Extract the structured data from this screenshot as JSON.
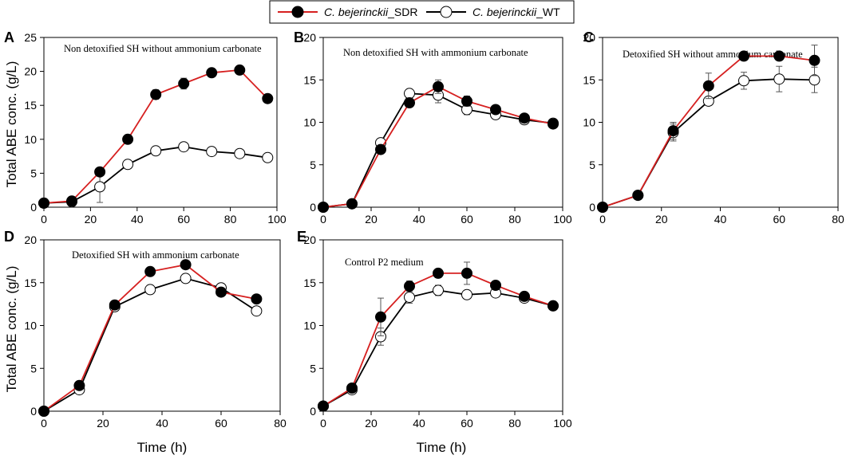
{
  "colors": {
    "sdr_line": "#d62020",
    "wt_line": "#000000",
    "marker_edge": "#000000",
    "sdr_fill": "#000000",
    "wt_fill": "#ffffff"
  },
  "legend": {
    "items": [
      {
        "series": "sdr",
        "italic": "C. bejerinckii",
        "suffix": "_SDR"
      },
      {
        "series": "wt",
        "italic": "C. bejerinckii",
        "suffix": "_WT"
      }
    ]
  },
  "y_axis_title": "Total ABE conc. (g/L)",
  "x_axis_title": "Time (h)",
  "chart_data": [
    {
      "type": "line",
      "letter": "A",
      "title": "Non detoxified SH without ammonium carbonate",
      "xlim": [
        0,
        100
      ],
      "ylim": [
        0,
        25
      ],
      "xticks": [
        0,
        20,
        40,
        60,
        80,
        100
      ],
      "yticks": [
        0,
        5,
        10,
        15,
        20,
        25
      ],
      "series": [
        {
          "name": "C. bejerinckii_SDR",
          "key": "sdr",
          "x": [
            0,
            12,
            24,
            36,
            48,
            60,
            72,
            84,
            96
          ],
          "y": [
            0.6,
            0.9,
            5.2,
            10.0,
            16.6,
            18.2,
            19.8,
            20.2,
            16.0
          ],
          "err": [
            0,
            0,
            0,
            0,
            0.7,
            0.8,
            0.3,
            0.3,
            0
          ]
        },
        {
          "name": "C. bejerinckii_WT",
          "key": "wt",
          "x": [
            0,
            12,
            24,
            36,
            48,
            60,
            72,
            84,
            96
          ],
          "y": [
            0.6,
            0.8,
            3.0,
            6.3,
            8.3,
            8.9,
            8.2,
            7.9,
            7.3
          ],
          "err": [
            0,
            0,
            2.3,
            0,
            0,
            0,
            0,
            0,
            0
          ]
        }
      ]
    },
    {
      "type": "line",
      "letter": "B",
      "title": "Non detoxified SH with ammonium carbonate",
      "xlim": [
        0,
        100
      ],
      "ylim": [
        0,
        20
      ],
      "xticks": [
        0,
        20,
        40,
        60,
        80,
        100
      ],
      "yticks": [
        0,
        5,
        10,
        15,
        20
      ],
      "series": [
        {
          "name": "C. bejerinckii_SDR",
          "key": "sdr",
          "x": [
            0,
            12,
            24,
            36,
            48,
            60,
            72,
            84,
            96
          ],
          "y": [
            0,
            0.4,
            6.8,
            12.3,
            14.2,
            12.5,
            11.5,
            10.5,
            9.8
          ],
          "err": [
            0,
            0,
            0,
            0.5,
            0.8,
            0.6,
            0.4,
            0.3,
            0
          ]
        },
        {
          "name": "C. bejerinckii_WT",
          "key": "wt",
          "x": [
            0,
            12,
            24,
            36,
            48,
            60,
            72,
            84,
            96
          ],
          "y": [
            0,
            0.4,
            7.6,
            13.4,
            13.2,
            11.5,
            10.9,
            10.3,
            9.9
          ],
          "err": [
            0,
            0,
            0,
            0.4,
            0.9,
            0.6,
            0.3,
            0.3,
            0
          ]
        }
      ]
    },
    {
      "type": "line",
      "letter": "C",
      "title": "Detoxified SH without ammonium carbonate",
      "xlim": [
        0,
        80
      ],
      "ylim": [
        0,
        20
      ],
      "xticks": [
        0,
        20,
        40,
        60,
        80
      ],
      "yticks": [
        0,
        5,
        10,
        15,
        20
      ],
      "series": [
        {
          "name": "C. bejerinckii_SDR",
          "key": "sdr",
          "x": [
            0,
            12,
            24,
            36,
            48,
            60,
            72
          ],
          "y": [
            0,
            1.4,
            9.0,
            14.3,
            17.8,
            17.8,
            17.3
          ],
          "err": [
            0,
            0,
            1.0,
            1.5,
            0.3,
            0.4,
            1.8
          ]
        },
        {
          "name": "C. bejerinckii_WT",
          "key": "wt",
          "x": [
            0,
            12,
            24,
            36,
            48,
            60,
            72
          ],
          "y": [
            0,
            1.4,
            8.8,
            12.5,
            14.9,
            15.1,
            15.0
          ],
          "err": [
            0,
            0,
            1.0,
            0,
            1.0,
            1.5,
            1.5
          ]
        }
      ]
    },
    {
      "type": "line",
      "letter": "D",
      "title": "Detoxified SH with ammonium carbonate",
      "xlim": [
        0,
        80
      ],
      "ylim": [
        0,
        20
      ],
      "xticks": [
        0,
        20,
        40,
        60,
        80
      ],
      "yticks": [
        0,
        5,
        10,
        15,
        20
      ],
      "series": [
        {
          "name": "C. bejerinckii_SDR",
          "key": "sdr",
          "x": [
            0,
            12,
            24,
            36,
            48,
            60,
            72
          ],
          "y": [
            0,
            3.0,
            12.4,
            16.3,
            17.1,
            13.9,
            13.1
          ],
          "err": [
            0,
            0,
            0,
            0,
            0,
            0,
            0
          ]
        },
        {
          "name": "C. bejerinckii_WT",
          "key": "wt",
          "x": [
            0,
            12,
            24,
            36,
            48,
            60,
            72
          ],
          "y": [
            0,
            2.5,
            12.2,
            14.2,
            15.5,
            14.4,
            11.7
          ],
          "err": [
            0,
            0,
            0,
            0,
            0,
            0,
            0
          ]
        }
      ]
    },
    {
      "type": "line",
      "letter": "E",
      "title": "Control P2 medium",
      "xlim": [
        0,
        100
      ],
      "ylim": [
        0,
        20
      ],
      "xticks": [
        0,
        20,
        40,
        60,
        80,
        100
      ],
      "yticks": [
        0,
        5,
        10,
        15,
        20
      ],
      "series": [
        {
          "name": "C. bejerinckii_SDR",
          "key": "sdr",
          "x": [
            0,
            12,
            24,
            36,
            48,
            60,
            72,
            84,
            96
          ],
          "y": [
            0.6,
            2.7,
            11.0,
            14.6,
            16.1,
            16.1,
            14.7,
            13.4,
            12.3
          ],
          "err": [
            0,
            0,
            2.2,
            0.6,
            0.5,
            1.3,
            0.5,
            0.4,
            0
          ]
        },
        {
          "name": "C. bejerinckii_WT",
          "key": "wt",
          "x": [
            0,
            12,
            24,
            36,
            48,
            60,
            72,
            84,
            96
          ],
          "y": [
            0.6,
            2.5,
            8.7,
            13.3,
            14.1,
            13.6,
            13.8,
            13.2,
            12.3
          ],
          "err": [
            0,
            0,
            1.0,
            0.7,
            0.6,
            0.4,
            0.4,
            0.4,
            0
          ]
        }
      ]
    }
  ]
}
